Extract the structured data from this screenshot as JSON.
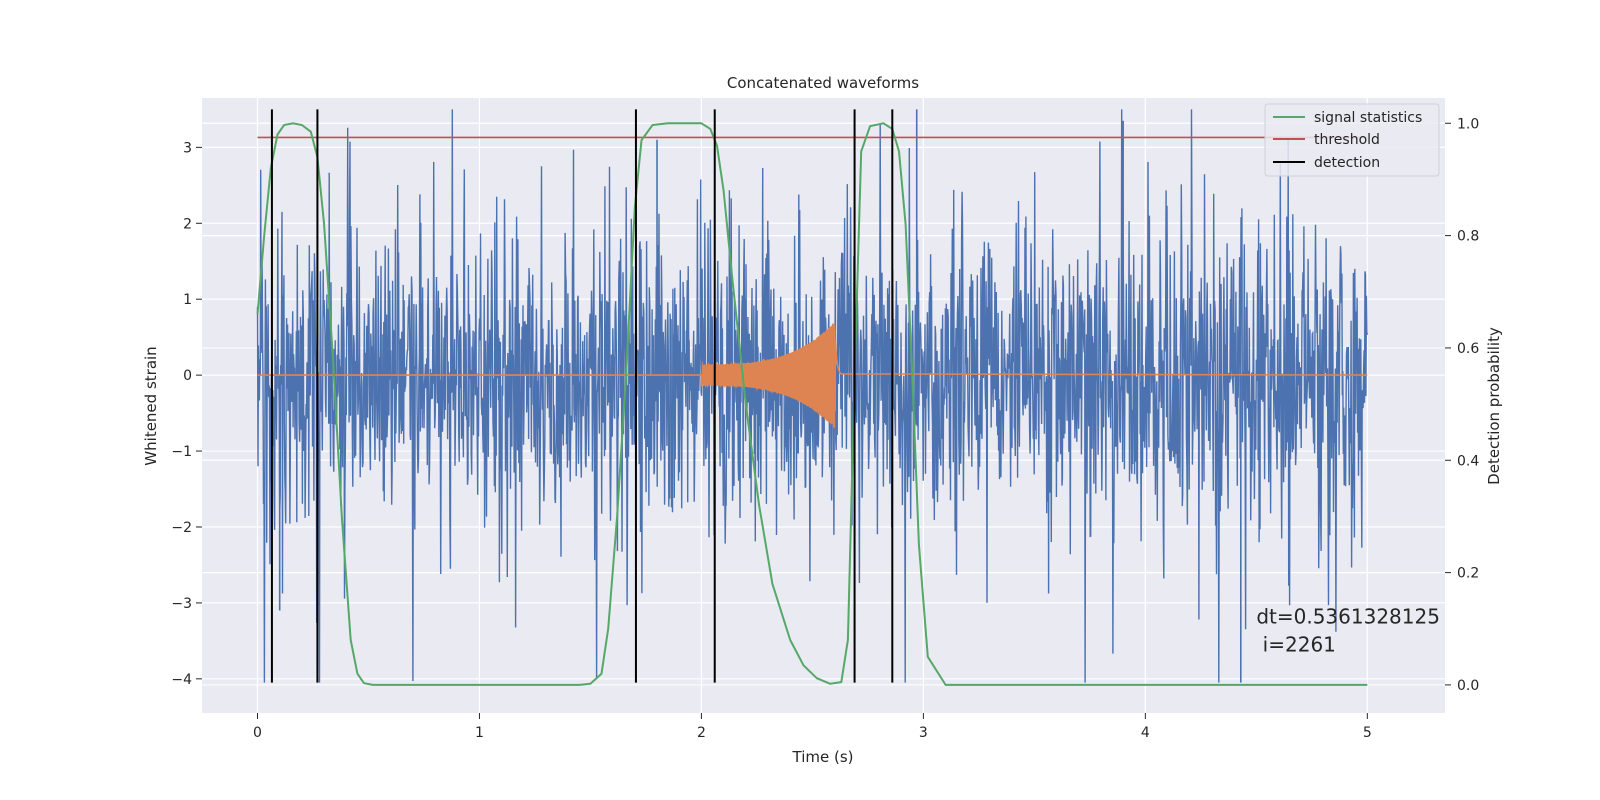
{
  "chart_data": {
    "type": "line",
    "title": "Concatenated waveforms",
    "xlabel": "Time (s)",
    "ylabel_left": "Whitened strain",
    "ylabel_right": "Detection probability",
    "xlim": [
      -0.25,
      5.35
    ],
    "ylim_left": [
      -4.45,
      3.65
    ],
    "ylim_right": [
      -0.05,
      1.045
    ],
    "x_ticks": [
      0,
      1,
      2,
      3,
      4,
      5
    ],
    "y_left_ticks": [
      -4,
      -3,
      -2,
      -1,
      0,
      1,
      2,
      3
    ],
    "y_right_ticks": [
      0.0,
      0.2,
      0.4,
      0.6,
      0.8,
      1.0
    ],
    "grid": true,
    "legend_position": "top-right",
    "colors": {
      "background": "#eaeaf2",
      "strain": "#4c72b0",
      "injected_signal": "#dd8452",
      "signal_statistics": "#55a868",
      "threshold": "#c44e52",
      "detection": "#000000"
    },
    "series": [
      {
        "name": "signal statistics",
        "axis": "right",
        "color": "#55a868",
        "x": [
          0,
          0.03,
          0.06,
          0.09,
          0.12,
          0.16,
          0.2,
          0.24,
          0.27,
          0.3,
          0.34,
          0.38,
          0.42,
          0.45,
          0.48,
          0.52,
          0.6,
          1.0,
          1.45,
          1.5,
          1.55,
          1.58,
          1.62,
          1.66,
          1.7,
          1.73,
          1.78,
          1.85,
          2.0,
          2.04,
          2.07,
          2.1,
          2.14,
          2.2,
          2.26,
          2.32,
          2.4,
          2.46,
          2.52,
          2.58,
          2.63,
          2.66,
          2.69,
          2.72,
          2.76,
          2.82,
          2.86,
          2.89,
          2.92,
          2.95,
          2.98,
          3.02,
          3.1,
          4.0,
          5.0
        ],
        "values": [
          0.66,
          0.8,
          0.92,
          0.98,
          0.997,
          1.0,
          0.997,
          0.985,
          0.94,
          0.82,
          0.58,
          0.3,
          0.08,
          0.02,
          0.003,
          0.0,
          0.0,
          0.0,
          0.0,
          0.002,
          0.02,
          0.1,
          0.3,
          0.55,
          0.85,
          0.97,
          0.997,
          1.0,
          1.0,
          0.99,
          0.96,
          0.88,
          0.72,
          0.5,
          0.32,
          0.18,
          0.08,
          0.035,
          0.012,
          0.002,
          0.005,
          0.08,
          0.55,
          0.95,
          0.995,
          1.0,
          0.99,
          0.95,
          0.82,
          0.55,
          0.25,
          0.05,
          0.0,
          0.0,
          0.0
        ]
      },
      {
        "name": "threshold",
        "axis": "left",
        "color": "#c44e52",
        "x": [
          0,
          5.0
        ],
        "values": [
          3.13,
          3.13
        ]
      },
      {
        "name": "detection",
        "axis": "left",
        "color": "#000000",
        "x": [
          0.065,
          0.27,
          1.705,
          2.06,
          2.69,
          2.86
        ],
        "ymin": -4.05,
        "ymax": 3.5
      }
    ],
    "strain": {
      "x_range": [
        0,
        5.0
      ],
      "samples": 2400,
      "typical_band": [
        -1.0,
        1.0
      ],
      "max_spike": 3.5,
      "min_spike": -4.05
    },
    "injected_signal": {
      "start": 2.0,
      "peak_time": 2.6,
      "end": 2.63,
      "peak_amplitude": 0.7
    },
    "annotation": {
      "line1": "dt=0.5361328125",
      "line2": " i=2261",
      "x": 4.5,
      "y": -3.18
    }
  }
}
